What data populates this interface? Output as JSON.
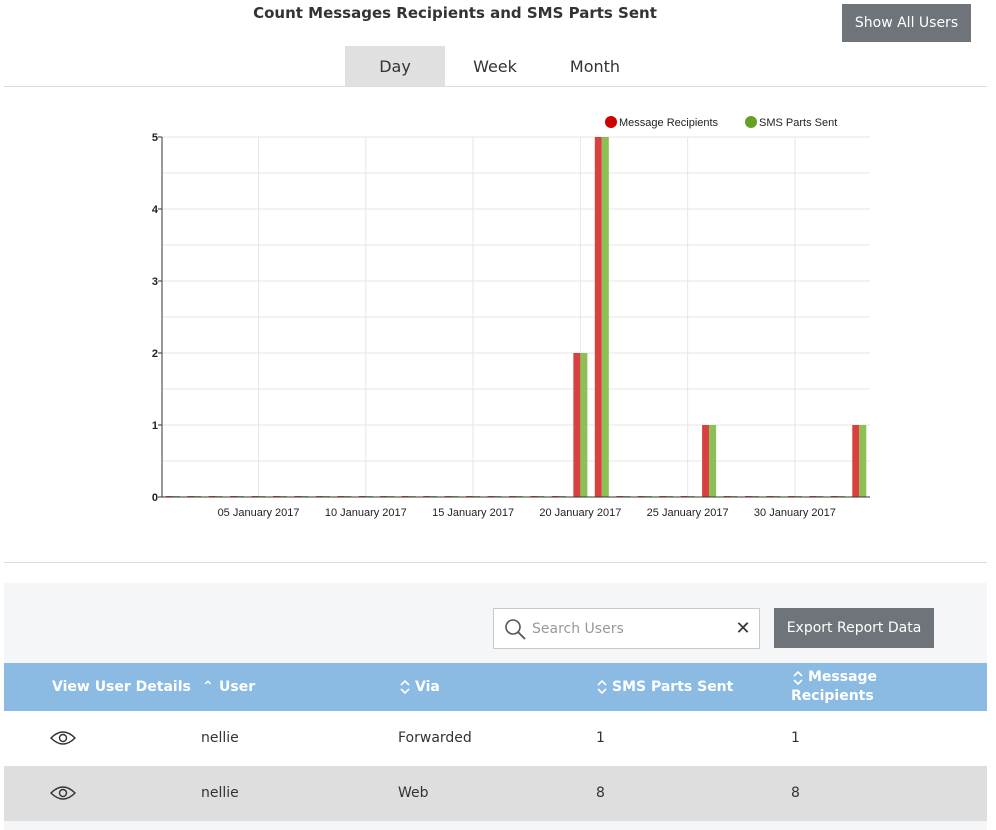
{
  "header": {
    "title": "Count Messages Recipients and SMS Parts Sent",
    "show_all_label": "Show All Users"
  },
  "period_tabs": [
    {
      "label": "Day",
      "active": true
    },
    {
      "label": "Week",
      "active": false
    },
    {
      "label": "Month",
      "active": false
    }
  ],
  "chart_data": {
    "type": "bar",
    "title": "",
    "xlabel": "",
    "ylabel": "",
    "ylim": [
      0,
      5
    ],
    "y_ticks": [
      0,
      1,
      2,
      3,
      4,
      5
    ],
    "grid": true,
    "legend_position": "top-right",
    "x_tick_labels": [
      {
        "label": "05 January 2017",
        "day": 5
      },
      {
        "label": "10 January 2017",
        "day": 10
      },
      {
        "label": "15 January 2017",
        "day": 15
      },
      {
        "label": "20 January 2017",
        "day": 20
      },
      {
        "label": "25 January 2017",
        "day": 25
      },
      {
        "label": "30 January 2017",
        "day": 30
      }
    ],
    "categories": [
      "2017-01-01",
      "2017-01-02",
      "2017-01-03",
      "2017-01-04",
      "2017-01-05",
      "2017-01-06",
      "2017-01-07",
      "2017-01-08",
      "2017-01-09",
      "2017-01-10",
      "2017-01-11",
      "2017-01-12",
      "2017-01-13",
      "2017-01-14",
      "2017-01-15",
      "2017-01-16",
      "2017-01-17",
      "2017-01-18",
      "2017-01-19",
      "2017-01-20",
      "2017-01-21",
      "2017-01-22",
      "2017-01-23",
      "2017-01-24",
      "2017-01-25",
      "2017-01-26",
      "2017-01-27",
      "2017-01-28",
      "2017-01-29",
      "2017-01-30",
      "2017-01-31",
      "2017-02-01",
      "2017-02-02"
    ],
    "series": [
      {
        "name": "Message Recipients",
        "color": "#d94040",
        "legend_color": "#cc0000",
        "values": [
          0,
          0,
          0,
          0,
          0,
          0,
          0,
          0,
          0,
          0,
          0,
          0,
          0,
          0,
          0,
          0,
          0,
          0,
          0,
          2,
          5,
          0,
          0,
          0,
          0,
          1,
          0,
          0,
          0,
          0,
          0,
          0,
          1
        ]
      },
      {
        "name": "SMS Parts Sent",
        "color": "#8cc054",
        "legend_color": "#66a023",
        "values": [
          0,
          0,
          0,
          0,
          0,
          0,
          0,
          0,
          0,
          0,
          0,
          0,
          0,
          0,
          0,
          0,
          0,
          0,
          0,
          2,
          5,
          0,
          0,
          0,
          0,
          1,
          0,
          0,
          0,
          0,
          0,
          0,
          1
        ]
      }
    ]
  },
  "toolbar": {
    "search_placeholder": "Search Users",
    "search_value": "",
    "export_label": "Export Report Data"
  },
  "table": {
    "columns": [
      {
        "label": "View User Details",
        "sort": "none"
      },
      {
        "label": "User",
        "sort": "asc"
      },
      {
        "label": "Via",
        "sort": "both"
      },
      {
        "label": "SMS Parts Sent",
        "sort": "both"
      },
      {
        "label": "Message",
        "label2": "Recipients",
        "sort": "both"
      }
    ],
    "rows": [
      {
        "user": "nellie",
        "via": "Forwarded",
        "sms_parts_sent": "1",
        "message_recipients": "1"
      },
      {
        "user": "nellie",
        "via": "Web",
        "sms_parts_sent": "8",
        "message_recipients": "8"
      }
    ]
  }
}
